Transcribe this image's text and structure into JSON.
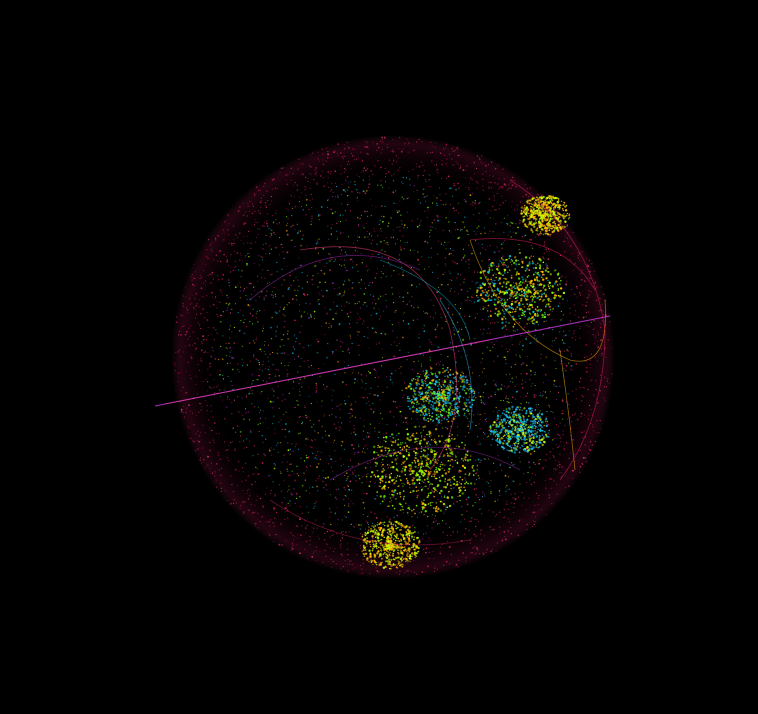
{
  "scene": {
    "background": "#000000",
    "subject": "particle-sphere",
    "palette": [
      "#c2185b",
      "#e91e63",
      "#ff4081",
      "#9c27b0",
      "#ffb300",
      "#c6ff00",
      "#76ff03",
      "#00bcd4",
      "#29b6f6"
    ]
  }
}
